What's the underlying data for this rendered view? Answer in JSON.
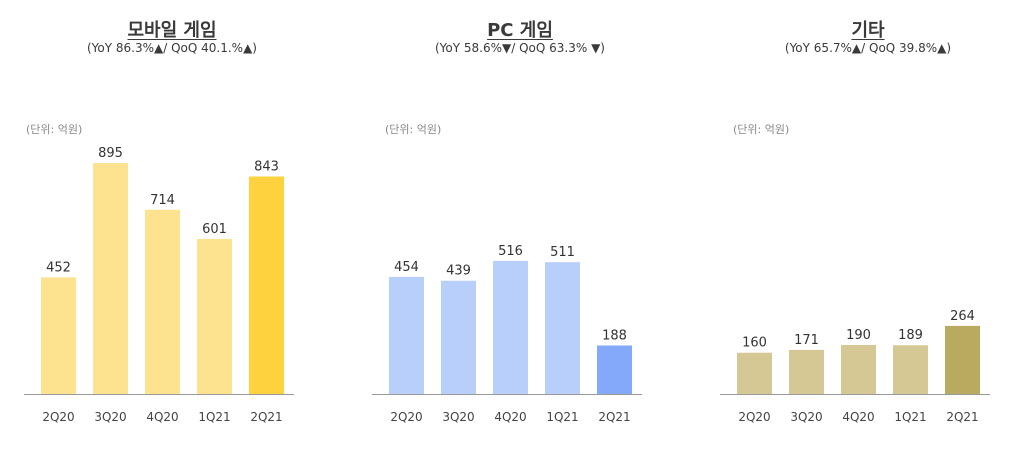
{
  "chart_data": [
    {
      "type": "bar",
      "title": "모바일 게임",
      "subtitle": "(YoY 86.3%▲/ QoQ 40.1.%▲)",
      "unit": "(단위: 억원)",
      "categories": [
        "2Q20",
        "3Q20",
        "4Q20",
        "1Q21",
        "2Q21"
      ],
      "values": [
        452,
        895,
        714,
        601,
        843
      ],
      "colors": [
        "#fde290",
        "#fde290",
        "#fde290",
        "#fde290",
        "#fed23f"
      ],
      "ylim": [
        0,
        1000
      ]
    },
    {
      "type": "bar",
      "title": "PC 게임",
      "subtitle": "(YoY 58.6%▼/ QoQ 63.3% ▼)",
      "unit": "(단위: 억원)",
      "categories": [
        "2Q20",
        "3Q20",
        "4Q20",
        "1Q21",
        "2Q21"
      ],
      "values": [
        454,
        439,
        516,
        511,
        188
      ],
      "colors": [
        "#b8cffc",
        "#b8cffc",
        "#b8cffc",
        "#b8cffc",
        "#84a9fa"
      ],
      "ylim": [
        0,
        1000
      ]
    },
    {
      "type": "bar",
      "title": "기타",
      "subtitle": "(YoY 65.7%▲/ QoQ 39.8%▲)",
      "unit": "(단위: 억원)",
      "categories": [
        "2Q20",
        "3Q20",
        "4Q20",
        "1Q21",
        "2Q21"
      ],
      "values": [
        160,
        171,
        190,
        189,
        264
      ],
      "colors": [
        "#d5c895",
        "#d5c895",
        "#d5c895",
        "#d5c895",
        "#b8aa5e"
      ],
      "ylim": [
        0,
        1000
      ]
    }
  ]
}
